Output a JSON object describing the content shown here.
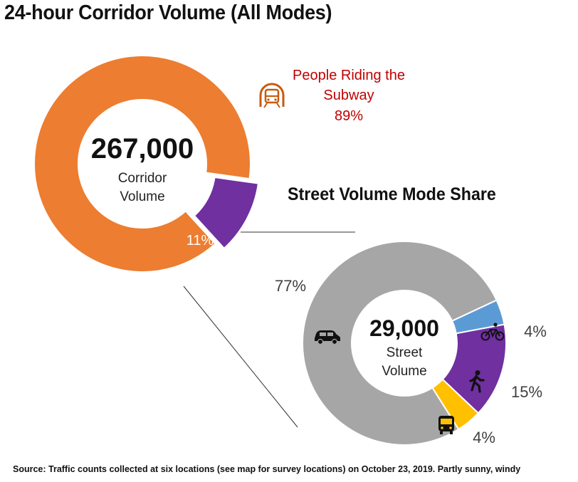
{
  "title": "24-hour Corridor Volume (All Modes)",
  "source": "Source: Traffic counts collected at six locations (see map for survey locations) on October 23, 2019. Partly sunny, windy",
  "colors": {
    "subway": "#ED7D31",
    "street": "#7030A0",
    "car": "#A6A6A6",
    "bike": "#5B9BD5",
    "walk": "#7030A0",
    "bus": "#FFC000",
    "subway_text": "#C00000"
  },
  "chart_data": [
    {
      "type": "pie",
      "style": "donut",
      "center_value": "267,000",
      "center_label": [
        "Corridor",
        "Volume"
      ],
      "slices": [
        {
          "label": "People Riding the Subway",
          "value": 89,
          "display": "89%",
          "icon": "subway-icon"
        },
        {
          "label": "",
          "value": 11,
          "display": "11%"
        }
      ]
    },
    {
      "type": "pie",
      "style": "donut",
      "title": "Street Volume Mode Share",
      "center_value": "29,000",
      "center_label": [
        "Street",
        "Volume"
      ],
      "slices": [
        {
          "value": 4,
          "display": "4%",
          "icon": "bicycle-icon"
        },
        {
          "value": 15,
          "display": "15%",
          "icon": "pedestrian-icon"
        },
        {
          "value": 4,
          "display": "4%",
          "icon": "bus-icon"
        },
        {
          "value": 77,
          "display": "77%",
          "icon": "car-icon"
        }
      ]
    }
  ]
}
